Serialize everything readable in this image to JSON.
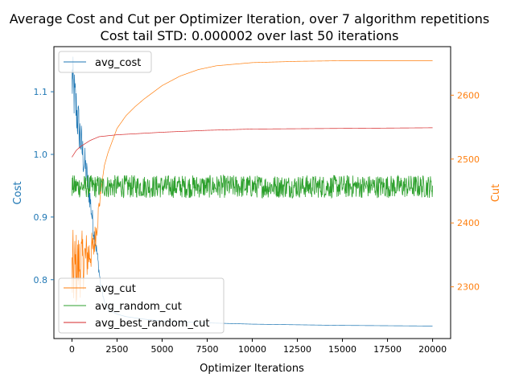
{
  "chart_data": {
    "type": "line",
    "title_line1": "Average Cost and Cut per Optimizer Iteration, over 7 algorithm repetitions",
    "title_line2": "Cost tail STD: 0.000002 over last 50 iterations",
    "xlabel": "Optimizer Iterations",
    "ylabel_left": "Cost",
    "ylabel_right": "Cut",
    "xlim": [
      -1000,
      21000
    ],
    "ylim_left": [
      0.706,
      1.172
    ],
    "ylim_right": [
      2219,
      2676
    ],
    "x_ticks": [
      0,
      2500,
      5000,
      7500,
      10000,
      12500,
      15000,
      17500,
      20000
    ],
    "x_tick_labels": [
      "0",
      "2500",
      "5000",
      "7500",
      "10000",
      "12500",
      "15000",
      "17500",
      "20000"
    ],
    "y_ticks_left": [
      0.8,
      0.9,
      1.0,
      1.1
    ],
    "y_tick_labels_left": [
      "0.8",
      "0.9",
      "1.0",
      "1.1"
    ],
    "y_ticks_right": [
      2300,
      2400,
      2500,
      2600
    ],
    "y_tick_labels_right": [
      "2300",
      "2400",
      "2500",
      "2600"
    ],
    "colors": {
      "cost": "#1f77b4",
      "cut": "#ff7f0e",
      "random": "#2ca02c",
      "best_random": "#d62728"
    },
    "legend_left": {
      "placement": "upper-left",
      "entries": [
        "avg_cost"
      ]
    },
    "legend_right": {
      "placement": "lower-left",
      "entries": [
        "avg_cut",
        "avg_random_cut",
        "avg_best_random_cut"
      ]
    },
    "series": [
      {
        "name": "avg_cost",
        "axis": "left",
        "noisy_until": 1800,
        "x": [
          0,
          200,
          400,
          600,
          800,
          1000,
          1200,
          1400,
          1600,
          1800,
          2000,
          2500,
          3000,
          4000,
          5000,
          7500,
          10000,
          12500,
          15000,
          17500,
          20000
        ],
        "y": [
          1.12,
          1.08,
          1.04,
          1.0,
          0.97,
          0.93,
          0.88,
          0.84,
          0.79,
          0.765,
          0.752,
          0.745,
          0.741,
          0.737,
          0.734,
          0.731,
          0.729,
          0.728,
          0.727,
          0.7265,
          0.726
        ]
      },
      {
        "name": "avg_cut",
        "axis": "right",
        "noisy_until": 1600,
        "x": [
          0,
          300,
          600,
          900,
          1200,
          1400,
          1600,
          1800,
          2000,
          2500,
          3000,
          3500,
          4000,
          5000,
          6000,
          7000,
          8000,
          10000,
          12500,
          15000,
          17500,
          20000
        ],
        "y": [
          2320,
          2330,
          2340,
          2350,
          2360,
          2400,
          2450,
          2490,
          2510,
          2548,
          2568,
          2582,
          2594,
          2615,
          2630,
          2640,
          2646,
          2651,
          2653,
          2654,
          2654,
          2654
        ]
      },
      {
        "name": "avg_random_cut",
        "axis": "right",
        "noisy_until": 20000,
        "x": [
          0,
          20000
        ],
        "y": [
          2457,
          2457
        ]
      },
      {
        "name": "avg_best_random_cut",
        "axis": "right",
        "noisy_until": 0,
        "x": [
          0,
          250,
          500,
          1000,
          1500,
          2500,
          5000,
          7500,
          10000,
          15000,
          20000
        ],
        "y": [
          2503,
          2514,
          2520,
          2529,
          2535,
          2538,
          2542,
          2545,
          2547,
          2548,
          2549
        ]
      }
    ]
  }
}
